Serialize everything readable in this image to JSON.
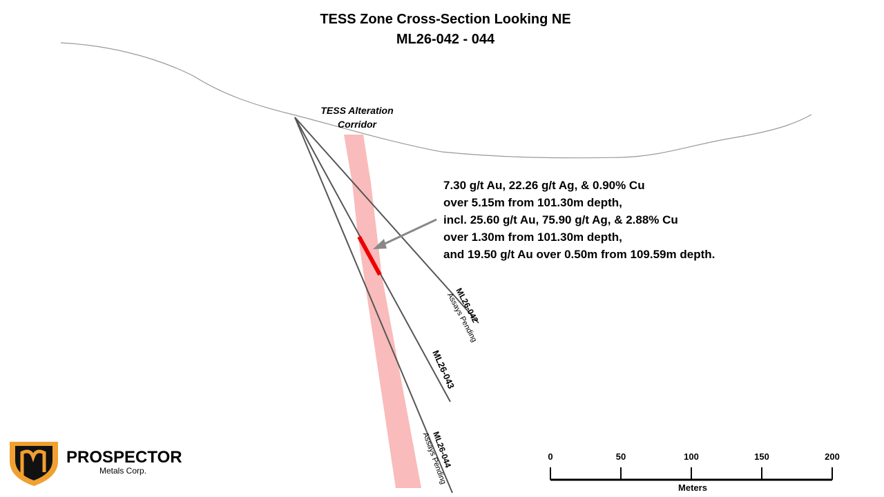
{
  "header": {
    "title": "TESS Zone Cross-Section Looking NE",
    "subtitle": "ML26-042 - 044"
  },
  "corridor": {
    "label_lines": [
      "TESS Alteration",
      "Corridor"
    ]
  },
  "annotation": {
    "lines": [
      "7.30 g/t Au, 22.26 g/t Ag, & 0.90% Cu",
      "over 5.15m from 101.30m depth,",
      "incl. 25.60 g/t Au, 75.90 g/t Ag, & 2.88% Cu",
      "over 1.30m from 101.30m depth,",
      "and 19.50 g/t Au over 0.50m from 109.59m depth."
    ]
  },
  "holes": [
    {
      "name": "ML26-042",
      "status": "Assays Pending"
    },
    {
      "name": "ML26-043"
    },
    {
      "name": "ML26-044",
      "status": "Assays Pending"
    }
  ],
  "logo": {
    "name": "PROSPECTOR",
    "sub": "Metals Corp."
  },
  "scale_bar": {
    "ticks": [
      0,
      50,
      100,
      150,
      200
    ],
    "unit": "Meters"
  }
}
